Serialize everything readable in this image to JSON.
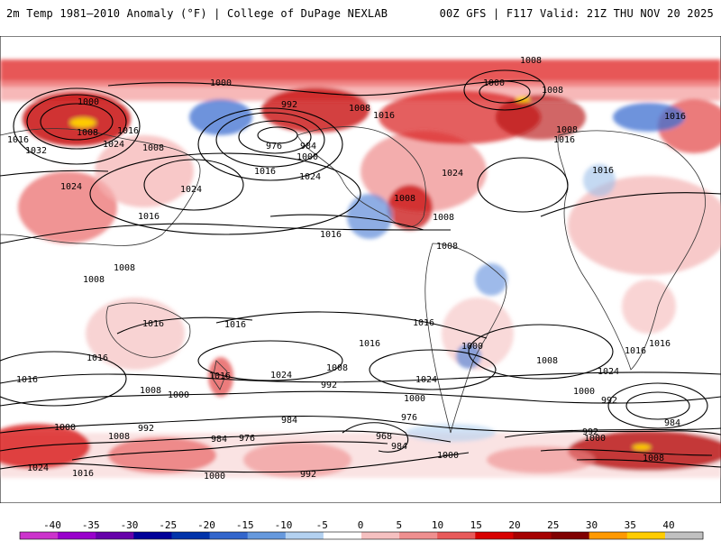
{
  "header": {
    "title_left": "2m Temp 1981–2010 Anomaly (°F) | College of DuPage NEXLAB",
    "title_right": "00Z GFS | F117 Valid: 21Z THU NOV 20 2025"
  },
  "colorbar": {
    "ticks": [
      "-40",
      "-35",
      "-30",
      "-25",
      "-20",
      "-15",
      "-10",
      "-5",
      "0",
      "5",
      "10",
      "15",
      "20",
      "25",
      "30",
      "35",
      "40"
    ],
    "colors": [
      "#cc33cc",
      "#9900cc",
      "#6600aa",
      "#000099",
      "#0033aa",
      "#3366cc",
      "#6699dd",
      "#b3d1f0",
      "#ffffff",
      "#f5c0c0",
      "#ef8f8f",
      "#e85a5a",
      "#d80000",
      "#a60000",
      "#800000",
      "#ff9900",
      "#ffcc00",
      "#c0c0c0"
    ]
  },
  "isobars": [
    {
      "text": "1008"
    },
    {
      "text": "1000"
    },
    {
      "text": "992"
    },
    {
      "text": "1008"
    },
    {
      "text": "1000"
    },
    {
      "text": "1000"
    },
    {
      "text": "1016"
    },
    {
      "text": "1008"
    },
    {
      "text": "1024"
    },
    {
      "text": "1016"
    },
    {
      "text": "1032"
    },
    {
      "text": "1008"
    },
    {
      "text": "976"
    },
    {
      "text": "984"
    },
    {
      "text": "1000"
    },
    {
      "text": "1016"
    },
    {
      "text": "1024"
    },
    {
      "text": "1024"
    },
    {
      "text": "1016"
    },
    {
      "text": "1016"
    },
    {
      "text": "1024"
    },
    {
      "text": "1008"
    },
    {
      "text": "1016"
    },
    {
      "text": "1008"
    },
    {
      "text": "1024"
    },
    {
      "text": "1016"
    },
    {
      "text": "1008"
    },
    {
      "text": "1016"
    },
    {
      "text": "1016"
    },
    {
      "text": "1008"
    },
    {
      "text": "1008"
    },
    {
      "text": "1008"
    },
    {
      "text": "1016"
    },
    {
      "text": "1008"
    },
    {
      "text": "1016"
    },
    {
      "text": "1016"
    },
    {
      "text": "1016"
    },
    {
      "text": "1016"
    },
    {
      "text": "1016"
    },
    {
      "text": "1024"
    },
    {
      "text": "1000"
    },
    {
      "text": "1016"
    },
    {
      "text": "1016"
    },
    {
      "text": "1024"
    },
    {
      "text": "1008"
    },
    {
      "text": "1008"
    },
    {
      "text": "1008"
    },
    {
      "text": "1000"
    },
    {
      "text": "992"
    },
    {
      "text": "1000"
    },
    {
      "text": "1024"
    },
    {
      "text": "1000"
    },
    {
      "text": "992"
    },
    {
      "text": "984"
    },
    {
      "text": "976"
    },
    {
      "text": "1000"
    },
    {
      "text": "992"
    },
    {
      "text": "984"
    },
    {
      "text": "976"
    },
    {
      "text": "968"
    },
    {
      "text": "984"
    },
    {
      "text": "1000"
    },
    {
      "text": "992"
    },
    {
      "text": "984"
    },
    {
      "text": "1008"
    },
    {
      "text": "1000"
    },
    {
      "text": "1024"
    },
    {
      "text": "1016"
    },
    {
      "text": "1000"
    },
    {
      "text": "992"
    },
    {
      "text": "1008"
    },
    {
      "text": "1016"
    }
  ]
}
